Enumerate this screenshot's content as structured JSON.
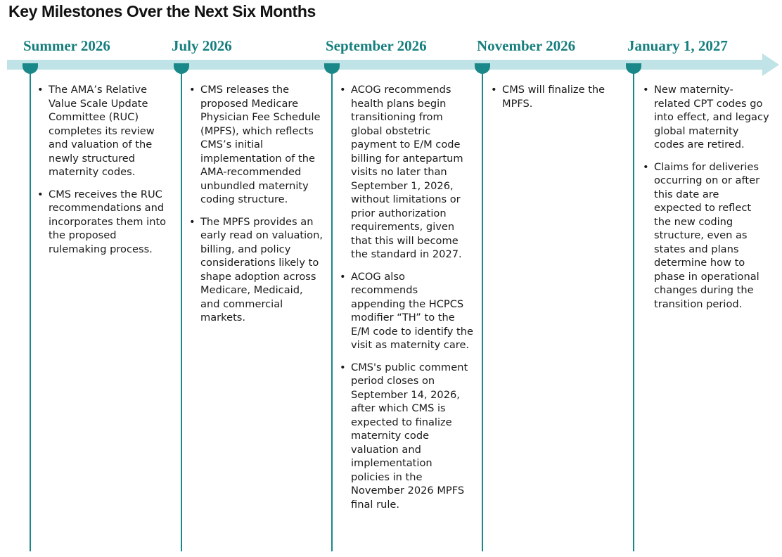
{
  "title": "Key Milestones Over the Next Six Months",
  "colors": {
    "accent": "#1a8888",
    "arrow": "#bfe3e6",
    "heading": "#177e7e"
  },
  "milestones": [
    {
      "heading": "Summer 2026",
      "items": [
        "The AMA’s Relative Value Scale Update Committee (RUC) completes its review and valuation of the newly structured maternity codes.",
        "CMS receives the RUC recommendations and incorporates them into the proposed rulemaking process."
      ]
    },
    {
      "heading": "July 2026",
      "items": [
        "CMS releases the proposed Medicare Physician Fee Schedule (MPFS), which reflects CMS’s initial implementation of the AMA-recommended unbundled maternity coding structure.",
        "The MPFS provides an early read on valuation, billing, and policy considerations likely to shape adoption across Medicare, Medicaid, and commercial markets."
      ]
    },
    {
      "heading": "September 2026",
      "items": [
        "ACOG recommends health plans begin transitioning from global obstetric payment to E/M code billing for antepartum visits no later than September 1, 2026, without limitations or prior authorization requirements, given that this will become the standard in 2027.",
        "ACOG also recommends appending the HCPCS modifier “TH” to the E/M code to identify the visit as maternity care.",
        "CMS's public comment period closes on September 14, 2026, after which CMS is expected to finalize maternity code valuation and implementation policies in the November 2026 MPFS final rule."
      ]
    },
    {
      "heading": "November 2026",
      "items": [
        "CMS will finalize the MPFS."
      ]
    },
    {
      "heading": "January 1, 2027",
      "items": [
        "New maternity-related CPT codes go into effect, and legacy global maternity codes are retired.",
        "Claims for deliveries occurring on or after this date are expected to reflect the new coding structure, even as states and plans determine how to phase in operational changes during the transition period."
      ]
    }
  ]
}
